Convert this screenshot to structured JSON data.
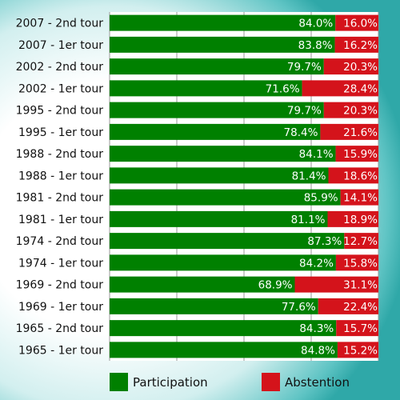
{
  "chart_data": {
    "type": "bar",
    "stacked": true,
    "orientation": "horizontal",
    "categories": [
      "2007 - 2nd tour",
      "2007 - 1er tour",
      "2002 - 2nd tour",
      "2002 - 1er tour",
      "1995 - 2nd tour",
      "1995 - 1er tour",
      "1988 - 2nd tour",
      "1988 - 1er tour",
      "1981 - 2nd tour",
      "1981 - 1er tour",
      "1974 - 2nd tour",
      "1974 - 1er tour",
      "1969 - 2nd tour",
      "1969 - 1er tour",
      "1965 - 2nd tour",
      "1965 - 1er tour"
    ],
    "series": [
      {
        "name": "Participation",
        "color": "#008000",
        "values": [
          84.0,
          83.8,
          79.7,
          71.6,
          79.7,
          78.4,
          84.1,
          81.4,
          85.9,
          81.1,
          87.3,
          84.2,
          68.9,
          77.6,
          84.3,
          84.8
        ],
        "labels": [
          "84.0%",
          "83.8%",
          "79.7%",
          "71.6%",
          "79.7%",
          "78.4%",
          "84.1%",
          "81.4%",
          "85.9%",
          "81.1%",
          "87.3%",
          "84.2%",
          "68.9%",
          "77.6%",
          "84.3%",
          "84.8%"
        ]
      },
      {
        "name": "Abstention",
        "color": "#d4131b",
        "values": [
          16.0,
          16.2,
          20.3,
          28.4,
          20.3,
          21.6,
          15.9,
          18.6,
          14.1,
          18.9,
          12.7,
          15.8,
          31.1,
          22.4,
          15.7,
          15.2
        ],
        "labels": [
          "16.0%",
          "16.2%",
          "20.3%",
          "28.4%",
          "20.3%",
          "21.6%",
          "15.9%",
          "18.6%",
          "14.1%",
          "18.9%",
          "12.7%",
          "15.8%",
          "31.1%",
          "22.4%",
          "15.7%",
          "15.2%"
        ]
      }
    ],
    "xlim": [
      0,
      100
    ],
    "legend_position": "bottom",
    "grid": true
  },
  "legend": {
    "participation_label": "Participation",
    "abstention_label": "Abstention"
  }
}
